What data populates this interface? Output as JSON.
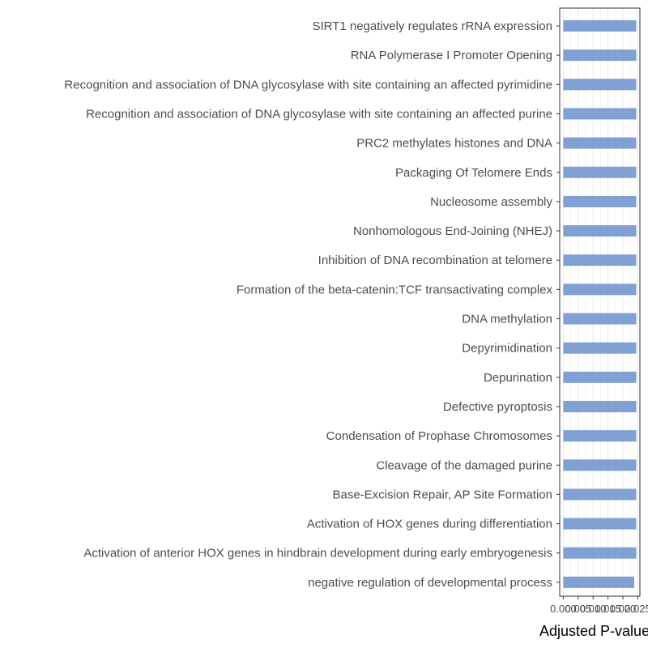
{
  "chart_data": {
    "type": "bar",
    "orientation": "horizontal",
    "title": "",
    "xlabel": "Adjusted P-value",
    "ylabel": "",
    "categories": [
      "SIRT1 negatively regulates rRNA expression",
      "RNA Polymerase I Promoter Opening",
      "Recognition and association of DNA glycosylase with site containing an affected pyrimidine",
      "Recognition and association of DNA glycosylase with site containing an affected purine",
      "PRC2 methylates histones and DNA",
      "Packaging Of Telomere Ends",
      "Nucleosome assembly",
      "Nonhomologous End-Joining (NHEJ)",
      "Inhibition of DNA recombination at telomere",
      "Formation of the beta-catenin:TCF transactivating complex",
      "DNA methylation",
      "Depyrimidination",
      "Depurination",
      "Defective pyroptosis",
      "Condensation of Prophase Chromosomes",
      "Cleavage of the damaged purine",
      "Base-Excision Repair, AP Site Formation",
      "Activation of HOX genes during differentiation",
      "Activation of anterior HOX genes in hindbrain development during early embryogenesis",
      "negative regulation of developmental process"
    ],
    "values": [
      0.0245,
      0.0245,
      0.0245,
      0.0245,
      0.0245,
      0.0245,
      0.0245,
      0.0245,
      0.0245,
      0.0245,
      0.0245,
      0.0245,
      0.0245,
      0.0245,
      0.0245,
      0.0245,
      0.0245,
      0.0245,
      0.0245,
      0.0238
    ],
    "xticks": [
      "0.000",
      "0.005",
      "0.010",
      "0.015",
      "0.020",
      "0.025"
    ],
    "xtick_values": [
      0,
      0.005,
      0.01,
      0.015,
      0.02,
      0.025
    ],
    "xlim": [
      -0.0012,
      0.0257
    ],
    "grid": true,
    "colors": {
      "bar": "#6b8fcb",
      "grid": "#ebebeb",
      "panel_border": "#333333",
      "axis_text": "#4d4d4d"
    }
  }
}
